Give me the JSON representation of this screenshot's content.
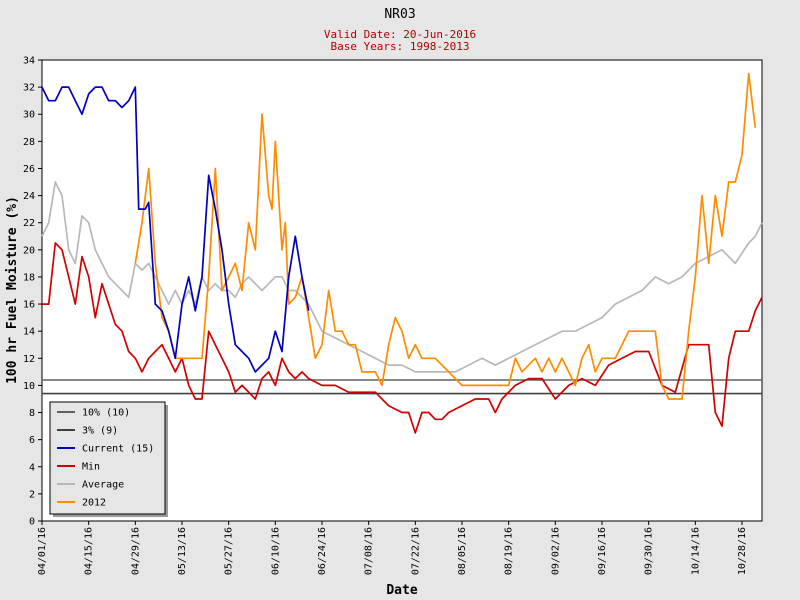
{
  "chart_data": {
    "type": "line",
    "title": "NR03",
    "subtitle_lines": [
      "Valid Date: 20-Jun-2016",
      "Base Years: 1998-2013"
    ],
    "xlabel": "Date",
    "ylabel": "100 hr Fuel Moisture (%)",
    "ylim": [
      0,
      34
    ],
    "yticks": [
      0,
      2,
      4,
      6,
      8,
      10,
      12,
      14,
      16,
      18,
      20,
      22,
      24,
      26,
      28,
      30,
      32,
      34
    ],
    "xlim": [
      "04/01/16",
      "11/03/16"
    ],
    "xticks": [
      "04/01/16",
      "04/15/16",
      "04/29/16",
      "05/13/16",
      "05/27/16",
      "06/10/16",
      "06/24/16",
      "07/08/16",
      "07/22/16",
      "08/05/16",
      "08/19/16",
      "09/02/16",
      "09/16/16",
      "09/30/16",
      "10/14/16",
      "10/28/16"
    ],
    "grid": false,
    "legend_position": "bottom-left",
    "thresholds": [
      {
        "name": "10% (10)",
        "value": 10.4,
        "color": "#606060"
      },
      {
        "name": "3% (9)",
        "value": 9.4,
        "color": "#404040"
      }
    ],
    "series": [
      {
        "name": "Current (15)",
        "color": "#0000c0",
        "points": [
          [
            "04/01/16",
            32
          ],
          [
            "04/03/16",
            31
          ],
          [
            "04/05/16",
            31
          ],
          [
            "04/07/16",
            32
          ],
          [
            "04/09/16",
            32
          ],
          [
            "04/11/16",
            31
          ],
          [
            "04/13/16",
            30
          ],
          [
            "04/15/16",
            31.5
          ],
          [
            "04/17/16",
            32
          ],
          [
            "04/19/16",
            32
          ],
          [
            "04/21/16",
            31
          ],
          [
            "04/23/16",
            31
          ],
          [
            "04/25/16",
            30.5
          ],
          [
            "04/27/16",
            31
          ],
          [
            "04/29/16",
            32
          ],
          [
            "04/30/16",
            23
          ],
          [
            "05/02/16",
            23
          ],
          [
            "05/03/16",
            23.5
          ],
          [
            "05/05/16",
            16
          ],
          [
            "05/07/16",
            15.5
          ],
          [
            "05/09/16",
            14
          ],
          [
            "05/11/16",
            12
          ],
          [
            "05/13/16",
            16
          ],
          [
            "05/15/16",
            18
          ],
          [
            "05/17/16",
            15.5
          ],
          [
            "05/19/16",
            18
          ],
          [
            "05/21/16",
            25.5
          ],
          [
            "05/23/16",
            23
          ],
          [
            "05/25/16",
            20
          ],
          [
            "05/27/16",
            16
          ],
          [
            "05/29/16",
            13
          ],
          [
            "05/31/16",
            12.5
          ],
          [
            "06/02/16",
            12
          ],
          [
            "06/04/16",
            11
          ],
          [
            "06/06/16",
            11.5
          ],
          [
            "06/08/16",
            12
          ],
          [
            "06/10/16",
            14
          ],
          [
            "06/12/16",
            12.5
          ],
          [
            "06/14/16",
            18
          ],
          [
            "06/16/16",
            21
          ],
          [
            "06/18/16",
            18
          ],
          [
            "06/20/16",
            15.5
          ]
        ]
      },
      {
        "name": "Min",
        "color": "#d00000",
        "points": [
          [
            "04/01/16",
            16
          ],
          [
            "04/03/16",
            16
          ],
          [
            "04/05/16",
            20.5
          ],
          [
            "04/07/16",
            20
          ],
          [
            "04/09/16",
            18
          ],
          [
            "04/11/16",
            16
          ],
          [
            "04/13/16",
            19.5
          ],
          [
            "04/15/16",
            18
          ],
          [
            "04/17/16",
            15
          ],
          [
            "04/19/16",
            17.5
          ],
          [
            "04/21/16",
            16
          ],
          [
            "04/23/16",
            14.5
          ],
          [
            "04/25/16",
            14
          ],
          [
            "04/27/16",
            12.5
          ],
          [
            "04/29/16",
            12
          ],
          [
            "05/01/16",
            11
          ],
          [
            "05/03/16",
            12
          ],
          [
            "05/05/16",
            12.5
          ],
          [
            "05/07/16",
            13
          ],
          [
            "05/09/16",
            12
          ],
          [
            "05/11/16",
            11
          ],
          [
            "05/13/16",
            12
          ],
          [
            "05/15/16",
            10
          ],
          [
            "05/17/16",
            9
          ],
          [
            "05/19/16",
            9
          ],
          [
            "05/21/16",
            14
          ],
          [
            "05/23/16",
            13
          ],
          [
            "05/25/16",
            12
          ],
          [
            "05/27/16",
            11
          ],
          [
            "05/29/16",
            9.5
          ],
          [
            "05/31/16",
            10
          ],
          [
            "06/02/16",
            9.5
          ],
          [
            "06/04/16",
            9
          ],
          [
            "06/06/16",
            10.5
          ],
          [
            "06/08/16",
            11
          ],
          [
            "06/10/16",
            10
          ],
          [
            "06/12/16",
            12
          ],
          [
            "06/14/16",
            11
          ],
          [
            "06/16/16",
            10.5
          ],
          [
            "06/18/16",
            11
          ],
          [
            "06/20/16",
            10.5
          ],
          [
            "06/24/16",
            10
          ],
          [
            "06/28/16",
            10
          ],
          [
            "07/02/16",
            9.5
          ],
          [
            "07/06/16",
            9.5
          ],
          [
            "07/10/16",
            9.5
          ],
          [
            "07/14/16",
            8.5
          ],
          [
            "07/18/16",
            8
          ],
          [
            "07/20/16",
            8
          ],
          [
            "07/22/16",
            6.5
          ],
          [
            "07/24/16",
            8
          ],
          [
            "07/26/16",
            8
          ],
          [
            "07/28/16",
            7.5
          ],
          [
            "07/30/16",
            7.5
          ],
          [
            "08/01/16",
            8
          ],
          [
            "08/05/16",
            8.5
          ],
          [
            "08/09/16",
            9
          ],
          [
            "08/13/16",
            9
          ],
          [
            "08/15/16",
            8
          ],
          [
            "08/17/16",
            9
          ],
          [
            "08/21/16",
            10
          ],
          [
            "08/25/16",
            10.5
          ],
          [
            "08/29/16",
            10.5
          ],
          [
            "09/02/16",
            9
          ],
          [
            "09/06/16",
            10
          ],
          [
            "09/10/16",
            10.5
          ],
          [
            "09/14/16",
            10
          ],
          [
            "09/18/16",
            11.5
          ],
          [
            "09/22/16",
            12
          ],
          [
            "09/26/16",
            12.5
          ],
          [
            "09/30/16",
            12.5
          ],
          [
            "10/04/16",
            10
          ],
          [
            "10/08/16",
            9.5
          ],
          [
            "10/12/16",
            13
          ],
          [
            "10/16/16",
            13
          ],
          [
            "10/18/16",
            13
          ],
          [
            "10/20/16",
            8
          ],
          [
            "10/22/16",
            7
          ],
          [
            "10/24/16",
            12
          ],
          [
            "10/26/16",
            14
          ],
          [
            "10/30/16",
            14
          ],
          [
            "11/01/16",
            15.5
          ],
          [
            "11/03/16",
            16.5
          ]
        ]
      },
      {
        "name": "Average",
        "color": "#b8b8b8",
        "points": [
          [
            "04/01/16",
            21
          ],
          [
            "04/03/16",
            22
          ],
          [
            "04/05/16",
            25
          ],
          [
            "04/07/16",
            24
          ],
          [
            "04/09/16",
            20
          ],
          [
            "04/11/16",
            19
          ],
          [
            "04/13/16",
            22.5
          ],
          [
            "04/15/16",
            22
          ],
          [
            "04/17/16",
            20
          ],
          [
            "04/19/16",
            19
          ],
          [
            "04/21/16",
            18
          ],
          [
            "04/23/16",
            17.5
          ],
          [
            "04/25/16",
            17
          ],
          [
            "04/27/16",
            16.5
          ],
          [
            "04/29/16",
            19
          ],
          [
            "05/01/16",
            18.5
          ],
          [
            "05/03/16",
            19
          ],
          [
            "05/05/16",
            18
          ],
          [
            "05/07/16",
            17
          ],
          [
            "05/09/16",
            16
          ],
          [
            "05/11/16",
            17
          ],
          [
            "05/13/16",
            16
          ],
          [
            "05/15/16",
            17
          ],
          [
            "05/17/16",
            16
          ],
          [
            "05/19/16",
            18
          ],
          [
            "05/21/16",
            17
          ],
          [
            "05/23/16",
            17.5
          ],
          [
            "05/25/16",
            17
          ],
          [
            "05/27/16",
            17
          ],
          [
            "05/29/16",
            16.5
          ],
          [
            "05/31/16",
            17.5
          ],
          [
            "06/02/16",
            18
          ],
          [
            "06/04/16",
            17.5
          ],
          [
            "06/06/16",
            17
          ],
          [
            "06/08/16",
            17.5
          ],
          [
            "06/10/16",
            18
          ],
          [
            "06/12/16",
            18
          ],
          [
            "06/14/16",
            17
          ],
          [
            "06/16/16",
            17
          ],
          [
            "06/20/16",
            16
          ],
          [
            "06/24/16",
            14
          ],
          [
            "06/28/16",
            13.5
          ],
          [
            "07/02/16",
            13
          ],
          [
            "07/06/16",
            12.5
          ],
          [
            "07/10/16",
            12
          ],
          [
            "07/14/16",
            11.5
          ],
          [
            "07/18/16",
            11.5
          ],
          [
            "07/22/16",
            11
          ],
          [
            "07/26/16",
            11
          ],
          [
            "07/30/16",
            11
          ],
          [
            "08/03/16",
            11
          ],
          [
            "08/07/16",
            11.5
          ],
          [
            "08/11/16",
            12
          ],
          [
            "08/15/16",
            11.5
          ],
          [
            "08/19/16",
            12
          ],
          [
            "08/23/16",
            12.5
          ],
          [
            "08/27/16",
            13
          ],
          [
            "08/31/16",
            13.5
          ],
          [
            "09/04/16",
            14
          ],
          [
            "09/08/16",
            14
          ],
          [
            "09/12/16",
            14.5
          ],
          [
            "09/16/16",
            15
          ],
          [
            "09/20/16",
            16
          ],
          [
            "09/24/16",
            16.5
          ],
          [
            "09/28/16",
            17
          ],
          [
            "10/02/16",
            18
          ],
          [
            "10/06/16",
            17.5
          ],
          [
            "10/10/16",
            18
          ],
          [
            "10/14/16",
            19
          ],
          [
            "10/18/16",
            19.5
          ],
          [
            "10/22/16",
            20
          ],
          [
            "10/26/16",
            19
          ],
          [
            "10/30/16",
            20.5
          ],
          [
            "11/01/16",
            21
          ],
          [
            "11/03/16",
            22
          ]
        ]
      },
      {
        "name": "2012",
        "color": "#ff8c00",
        "points": [
          [
            "04/29/16",
            19
          ],
          [
            "05/01/16",
            22
          ],
          [
            "05/03/16",
            26
          ],
          [
            "05/05/16",
            19
          ],
          [
            "05/07/16",
            15
          ],
          [
            "05/09/16",
            14
          ],
          [
            "05/11/16",
            12
          ],
          [
            "05/13/16",
            12
          ],
          [
            "05/15/16",
            12
          ],
          [
            "05/17/16",
            12
          ],
          [
            "05/19/16",
            12
          ],
          [
            "05/21/16",
            18
          ],
          [
            "05/23/16",
            26
          ],
          [
            "05/25/16",
            17
          ],
          [
            "05/27/16",
            18
          ],
          [
            "05/29/16",
            19
          ],
          [
            "05/31/16",
            17
          ],
          [
            "06/02/16",
            22
          ],
          [
            "06/04/16",
            20
          ],
          [
            "06/06/16",
            30
          ],
          [
            "06/08/16",
            24
          ],
          [
            "06/09/16",
            23
          ],
          [
            "06/10/16",
            28
          ],
          [
            "06/12/16",
            20
          ],
          [
            "06/13/16",
            22
          ],
          [
            "06/14/16",
            16
          ],
          [
            "06/16/16",
            16.5
          ],
          [
            "06/18/16",
            18
          ],
          [
            "06/20/16",
            15
          ],
          [
            "06/22/16",
            12
          ],
          [
            "06/24/16",
            13
          ],
          [
            "06/26/16",
            17
          ],
          [
            "06/28/16",
            14
          ],
          [
            "06/30/16",
            14
          ],
          [
            "07/02/16",
            13
          ],
          [
            "07/04/16",
            13
          ],
          [
            "07/06/16",
            11
          ],
          [
            "07/08/16",
            11
          ],
          [
            "07/10/16",
            11
          ],
          [
            "07/12/16",
            10
          ],
          [
            "07/14/16",
            13
          ],
          [
            "07/16/16",
            15
          ],
          [
            "07/18/16",
            14
          ],
          [
            "07/20/16",
            12
          ],
          [
            "07/22/16",
            13
          ],
          [
            "07/24/16",
            12
          ],
          [
            "07/28/16",
            12
          ],
          [
            "08/01/16",
            11
          ],
          [
            "08/05/16",
            10
          ],
          [
            "08/09/16",
            10
          ],
          [
            "08/13/16",
            10
          ],
          [
            "08/19/16",
            10
          ],
          [
            "08/21/16",
            12
          ],
          [
            "08/23/16",
            11
          ],
          [
            "08/27/16",
            12
          ],
          [
            "08/29/16",
            11
          ],
          [
            "08/31/16",
            12
          ],
          [
            "09/02/16",
            11
          ],
          [
            "09/04/16",
            12
          ],
          [
            "09/08/16",
            10
          ],
          [
            "09/10/16",
            12
          ],
          [
            "09/12/16",
            13
          ],
          [
            "09/14/16",
            11
          ],
          [
            "09/16/16",
            12
          ],
          [
            "09/20/16",
            12
          ],
          [
            "09/22/16",
            13
          ],
          [
            "09/24/16",
            14
          ],
          [
            "09/28/16",
            14
          ],
          [
            "10/02/16",
            14
          ],
          [
            "10/04/16",
            10
          ],
          [
            "10/06/16",
            9
          ],
          [
            "10/10/16",
            9
          ],
          [
            "10/12/16",
            14
          ],
          [
            "10/14/16",
            18
          ],
          [
            "10/16/16",
            24
          ],
          [
            "10/18/16",
            19
          ],
          [
            "10/20/16",
            24
          ],
          [
            "10/22/16",
            21
          ],
          [
            "10/24/16",
            25
          ],
          [
            "10/26/16",
            25
          ],
          [
            "10/28/16",
            27
          ],
          [
            "10/30/16",
            33
          ],
          [
            "11/01/16",
            29
          ]
        ]
      }
    ]
  }
}
